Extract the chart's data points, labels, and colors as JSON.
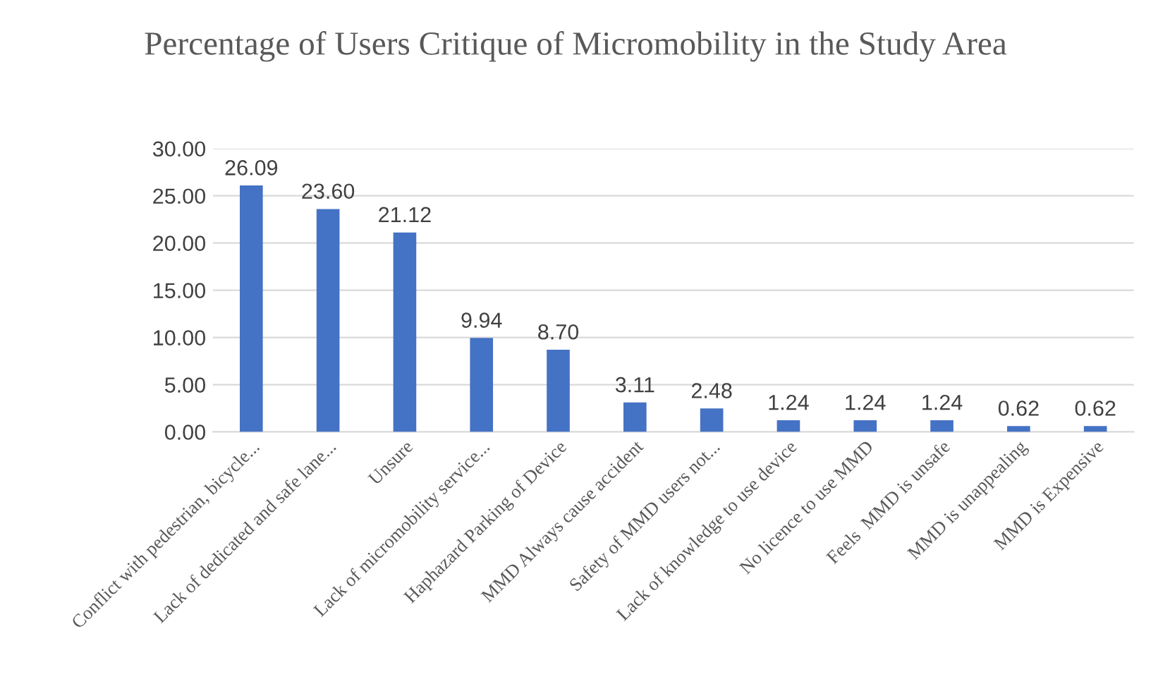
{
  "chart_data": {
    "type": "bar",
    "title": "Percentage of Users Critique of Micromobility in the Study Area",
    "categories": [
      "Conflict with pedestrian, bicycle...",
      "Lack of dedicated and safe lane...",
      "Unsure",
      "Lack of micromobility service...",
      "Haphazard Parking of Device",
      "MMD Always cause accident",
      "Safety of MMD users not...",
      "Lack of knowledge to use device",
      "No licence to use MMD",
      "Feels  MMD is unsafe",
      "MMD is unappealing",
      "MMD is Expensive"
    ],
    "values": [
      26.09,
      23.6,
      21.12,
      9.94,
      8.7,
      3.11,
      2.48,
      1.24,
      1.24,
      1.24,
      0.62,
      0.62
    ],
    "value_labels": [
      "26.09",
      "23.60",
      "21.12",
      "9.94",
      "8.70",
      "3.11",
      "2.48",
      "1.24",
      "1.24",
      "1.24",
      "0.62",
      "0.62"
    ],
    "color": "#4472c4",
    "ylim": [
      0,
      30
    ],
    "yticks": [
      {
        "value": 0,
        "label": "0.00"
      },
      {
        "value": 5,
        "label": "5.00"
      },
      {
        "value": 10,
        "label": "10.00"
      },
      {
        "value": 15,
        "label": "15.00"
      },
      {
        "value": 20,
        "label": "20.00"
      },
      {
        "value": 25,
        "label": "25.00"
      },
      {
        "value": 30,
        "label": "30.00"
      }
    ],
    "grid": "y"
  }
}
